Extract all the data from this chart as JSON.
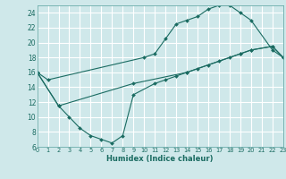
{
  "xlabel": "Humidex (Indice chaleur)",
  "bg_color": "#cfe8ea",
  "grid_color": "#ffffff",
  "line_color": "#1a6b61",
  "xmin": 0,
  "xmax": 23,
  "ymin": 6,
  "ymax": 25,
  "yticks": [
    6,
    8,
    10,
    12,
    14,
    16,
    18,
    20,
    22,
    24
  ],
  "xticks": [
    0,
    1,
    2,
    3,
    4,
    5,
    6,
    7,
    8,
    9,
    10,
    11,
    12,
    13,
    14,
    15,
    16,
    17,
    18,
    19,
    20,
    21,
    22,
    23
  ],
  "curve1_x": [
    0,
    1,
    10,
    11,
    12,
    13,
    14,
    15,
    16,
    17,
    18,
    19,
    20,
    22,
    23
  ],
  "curve1_y": [
    16,
    15,
    18,
    18.5,
    20.5,
    22.5,
    23,
    23.5,
    24.5,
    25,
    25,
    24,
    23,
    19,
    18
  ],
  "curve2_x": [
    0,
    2,
    3,
    4,
    5,
    6,
    7,
    8,
    9,
    11,
    12,
    13,
    14,
    15,
    16,
    17,
    18,
    19,
    20,
    22,
    23
  ],
  "curve2_y": [
    16,
    11.5,
    10,
    8.5,
    7.5,
    7,
    6.5,
    7.5,
    13,
    14.5,
    15,
    15.5,
    16,
    16.5,
    17,
    17.5,
    18,
    18.5,
    19,
    19.5,
    18
  ],
  "curve3_x": [
    0,
    2,
    9,
    14,
    19,
    20,
    22,
    23
  ],
  "curve3_y": [
    16,
    11.5,
    14.5,
    16,
    18.5,
    19,
    19.5,
    18
  ]
}
